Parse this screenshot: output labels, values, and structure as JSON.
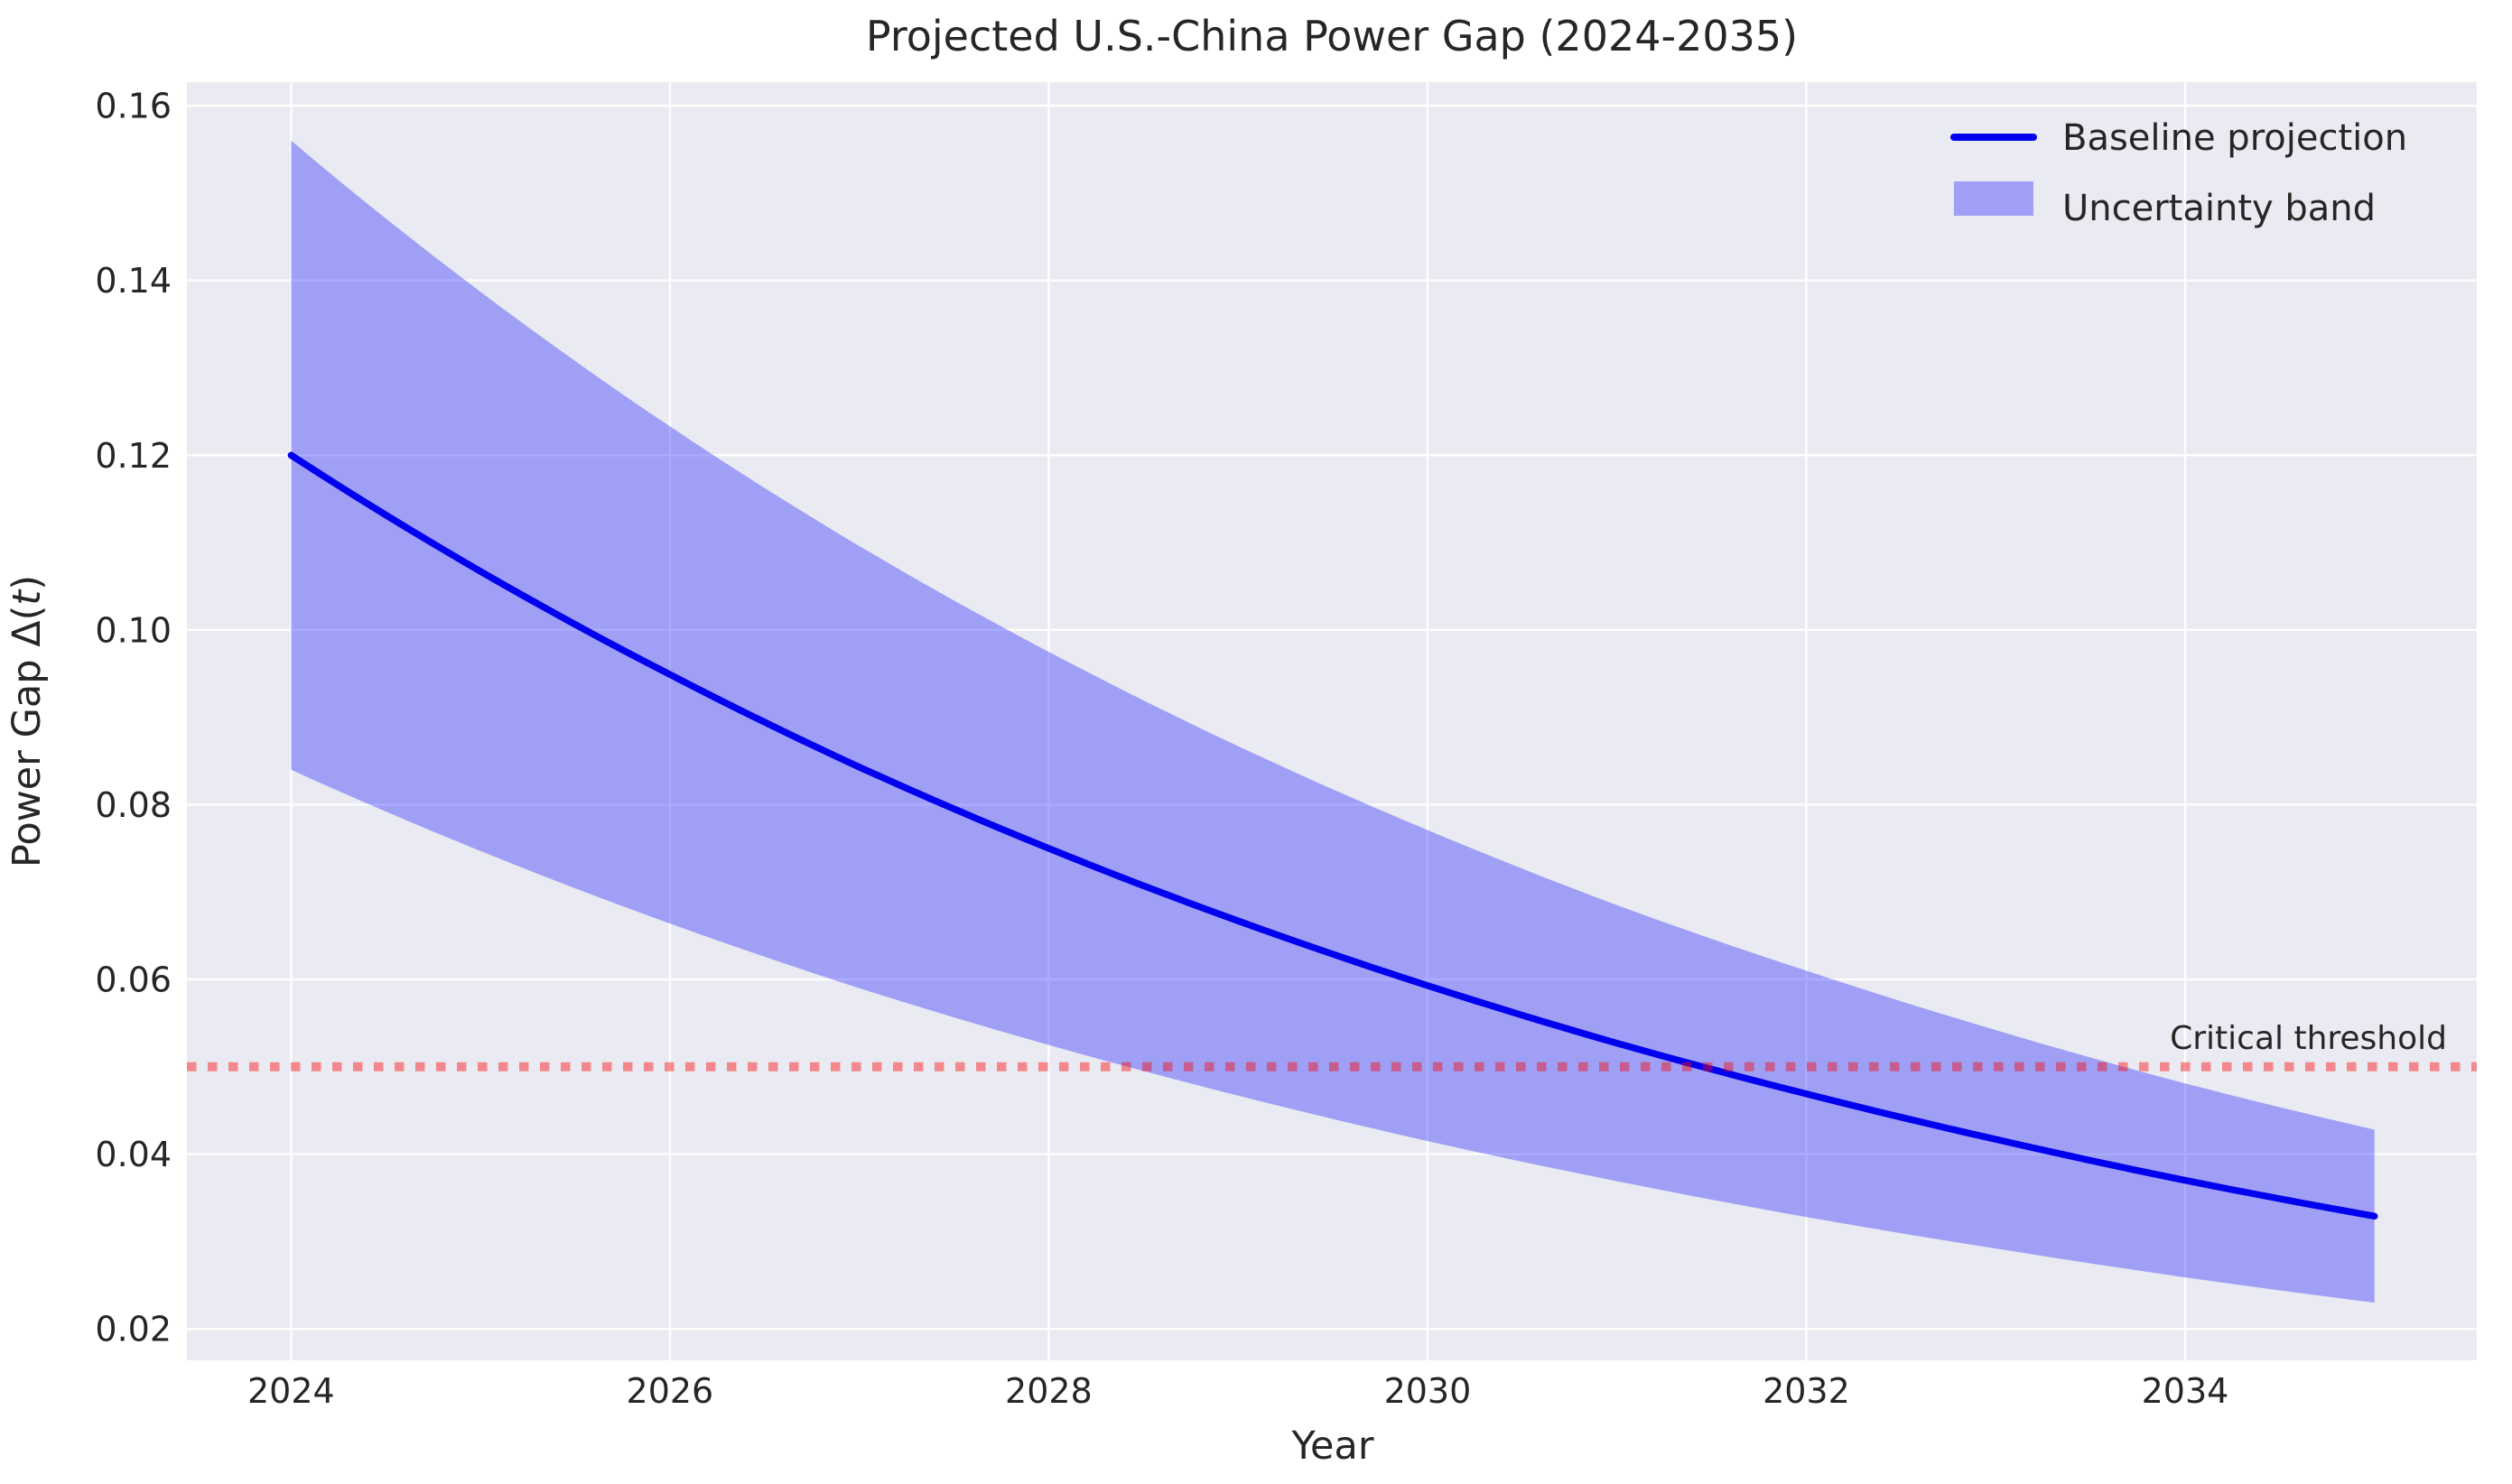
{
  "figure": {
    "title": "Projected U.S.-China Power Gap (2024-2035)",
    "background_color": "#ffffff",
    "plot_background_color": "#eaeaf2",
    "grid_color": "#ffffff",
    "text_color": "#262626"
  },
  "chart_data": {
    "type": "line",
    "title": "Projected U.S.-China Power Gap (2024-2035)",
    "xlabel": "Year",
    "ylabel": "Power Gap Δ(t)",
    "ylabel_parts": {
      "pre": "Power Gap Δ(",
      "var": "t",
      "post": ")"
    },
    "grid": true,
    "x": [
      2024,
      2025,
      2026,
      2027,
      2028,
      2029,
      2030,
      2031,
      2032,
      2033,
      2034,
      2035
    ],
    "series": [
      {
        "name": "Baseline projection",
        "color": "#0000ee",
        "style": "solid",
        "values": [
          0.12,
          0.1067,
          0.0949,
          0.0843,
          0.075,
          0.0667,
          0.0593,
          0.0527,
          0.0469,
          0.0417,
          0.037,
          0.0329
        ]
      },
      {
        "name": "Uncertainty band upper",
        "color": "rgba(0,0,255,0.32)",
        "values": [
          0.156,
          0.1387,
          0.1233,
          0.1096,
          0.0975,
          0.0867,
          0.0771,
          0.0685,
          0.061,
          0.0542,
          0.0481,
          0.0428
        ]
      },
      {
        "name": "Uncertainty band lower",
        "color": "rgba(0,0,255,0.32)",
        "values": [
          0.084,
          0.0747,
          0.0664,
          0.059,
          0.0525,
          0.0467,
          0.0415,
          0.0369,
          0.0328,
          0.0292,
          0.0259,
          0.023
        ]
      }
    ],
    "band": {
      "label": "Uncertainty band",
      "fill_color": "rgba(0,0,255,0.32)"
    },
    "threshold": {
      "value": 0.05,
      "label": "Critical threshold",
      "label_color": "#ee1111",
      "line_color": "rgba(255,0,0,0.42)",
      "line_style": "dotted"
    },
    "x_ticks": [
      2024,
      2026,
      2028,
      2030,
      2032,
      2034
    ],
    "x_tick_labels": [
      "2024",
      "2026",
      "2028",
      "2030",
      "2032",
      "2034"
    ],
    "y_ticks": [
      0.02,
      0.04,
      0.06,
      0.08,
      0.1,
      0.12,
      0.14,
      0.16
    ],
    "y_tick_labels": [
      "0.02",
      "0.04",
      "0.06",
      "0.08",
      "0.10",
      "0.12",
      "0.14",
      "0.16"
    ],
    "xlim": [
      2023.45,
      2035.54
    ],
    "ylim": [
      0.0164,
      0.1627
    ],
    "legend_position": "upper right"
  },
  "legend": {
    "items": [
      {
        "label": "Baseline projection",
        "swatch": "line",
        "color": "#0000ee"
      },
      {
        "label": "Uncertainty band",
        "swatch": "patch",
        "color": "rgba(0,0,255,0.32)"
      }
    ]
  }
}
